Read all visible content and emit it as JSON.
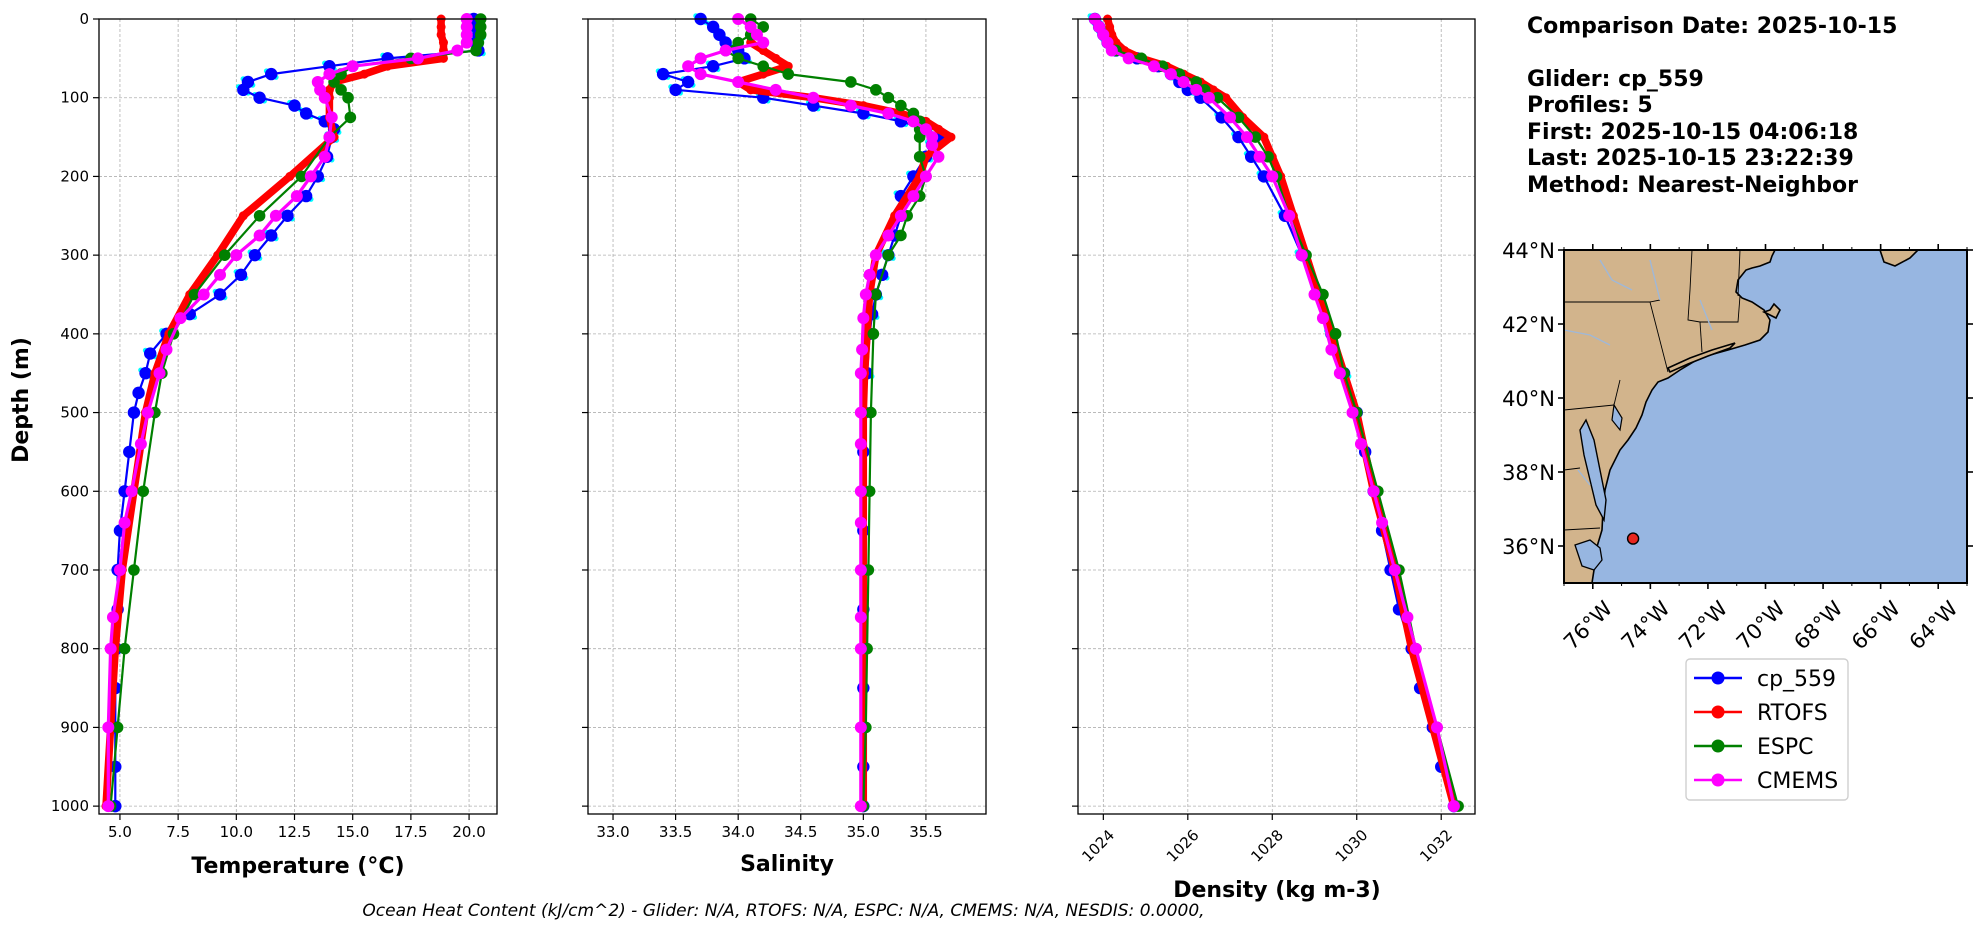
{
  "info": {
    "comparison_date": "Comparison Date: 2025-10-15",
    "glider": "Glider: cp_559",
    "profiles": "Profiles: 5",
    "first": "First: 2025-10-15 04:06:18",
    "last": "Last: 2025-10-15 23:22:39",
    "method": "Method: Nearest-Neighbor"
  },
  "footer": "Ocean Heat Content (kJ/cm^2) - Glider: N/A,  RTOFS: N/A,  ESPC: N/A,  CMEMS: N/A,  NESDIS: 0.0000,",
  "colors": {
    "glider": "#0000ff",
    "glider_raw": "#00ffff",
    "rtofs": "#ff0000",
    "espc": "#008000",
    "cmems": "#ff00ff",
    "land": "#d2b48c",
    "ocean": "#97b6e1"
  },
  "legend": [
    {
      "label": "cp_559",
      "color": "#0000ff"
    },
    {
      "label": "RTOFS",
      "color": "#ff0000"
    },
    {
      "label": "ESPC",
      "color": "#008000"
    },
    {
      "label": "CMEMS",
      "color": "#ff00ff"
    }
  ],
  "chart_data": [
    {
      "type": "line",
      "name": "temperature",
      "xlabel": "Temperature (°C)",
      "ylabel": "Depth (m)",
      "xlim": [
        4.1,
        21.2
      ],
      "ylim": [
        1010,
        0
      ],
      "xticks": [
        5.0,
        7.5,
        10.0,
        12.5,
        15.0,
        17.5,
        20.0
      ],
      "xtick_labels": [
        "5.0",
        "7.5",
        "10.0",
        "12.5",
        "15.0",
        "17.5",
        "20.0"
      ],
      "yticks": [
        0,
        100,
        200,
        300,
        400,
        500,
        600,
        700,
        800,
        900,
        1000
      ],
      "grid": true,
      "series": [
        {
          "name": "cp_559",
          "color": "#0000ff",
          "depth": [
            0,
            10,
            20,
            30,
            40,
            50,
            60,
            70,
            80,
            90,
            100,
            110,
            120,
            130,
            140,
            150,
            175,
            200,
            225,
            250,
            275,
            300,
            325,
            350,
            375,
            400,
            425,
            450,
            475,
            500,
            550,
            600,
            650,
            700,
            750,
            800,
            850,
            900,
            950,
            1000
          ],
          "values": [
            20.2,
            20.3,
            20.4,
            20.3,
            20.4,
            16.5,
            14.0,
            11.5,
            10.5,
            10.3,
            11.0,
            12.5,
            13.0,
            13.8,
            14.2,
            14.1,
            13.9,
            13.5,
            13.0,
            12.2,
            11.5,
            10.8,
            10.2,
            9.3,
            8.0,
            7.0,
            6.3,
            6.1,
            5.8,
            5.6,
            5.4,
            5.2,
            5.0,
            4.9,
            4.9,
            4.85,
            4.8,
            4.8,
            4.8,
            4.8
          ]
        },
        {
          "name": "RTOFS",
          "color": "#ff0000",
          "depth": [
            0,
            10,
            20,
            30,
            40,
            50,
            60,
            70,
            80,
            90,
            100,
            125,
            150,
            200,
            250,
            300,
            350,
            400,
            450,
            500,
            600,
            700,
            800,
            900,
            1000
          ],
          "values": [
            18.8,
            18.8,
            18.8,
            18.9,
            18.9,
            18.9,
            16.5,
            15.5,
            14.2,
            14.0,
            14.0,
            14.0,
            14.2,
            12.3,
            10.3,
            9.2,
            8.0,
            7.1,
            6.5,
            6.1,
            5.6,
            5.1,
            4.8,
            4.6,
            4.4
          ]
        },
        {
          "name": "ESPC",
          "color": "#008000",
          "depth": [
            0,
            10,
            20,
            30,
            40,
            50,
            60,
            70,
            80,
            90,
            100,
            125,
            150,
            200,
            250,
            300,
            350,
            400,
            450,
            500,
            600,
            700,
            800,
            900,
            1000
          ],
          "values": [
            20.5,
            20.5,
            20.5,
            20.4,
            20.3,
            17.5,
            15.0,
            14.5,
            14.2,
            14.5,
            14.8,
            14.9,
            14.0,
            12.8,
            11.0,
            9.5,
            8.2,
            7.3,
            6.8,
            6.5,
            6.0,
            5.6,
            5.2,
            4.9,
            4.6
          ]
        },
        {
          "name": "CMEMS",
          "color": "#ff00ff",
          "depth": [
            0,
            10,
            20,
            30,
            40,
            50,
            60,
            70,
            80,
            90,
            100,
            125,
            150,
            175,
            200,
            225,
            250,
            275,
            300,
            325,
            350,
            380,
            420,
            450,
            500,
            540,
            600,
            640,
            700,
            760,
            800,
            900,
            1000
          ],
          "values": [
            19.9,
            19.9,
            19.9,
            19.9,
            19.5,
            17.8,
            15.0,
            14.0,
            13.5,
            13.6,
            13.8,
            14.1,
            14.0,
            13.8,
            13.2,
            12.6,
            11.7,
            11.0,
            10.0,
            9.3,
            8.6,
            7.6,
            7.0,
            6.7,
            6.2,
            5.9,
            5.5,
            5.2,
            5.0,
            4.7,
            4.6,
            4.5,
            4.5
          ]
        }
      ]
    },
    {
      "type": "line",
      "name": "salinity",
      "xlabel": "Salinity",
      "ylabel": "",
      "xlim": [
        32.8,
        35.98
      ],
      "ylim": [
        1010,
        0
      ],
      "xticks": [
        33.0,
        33.5,
        34.0,
        34.5,
        35.0,
        35.5
      ],
      "xtick_labels": [
        "33.0",
        "33.5",
        "34.0",
        "34.5",
        "35.0",
        "35.5"
      ],
      "grid": true,
      "series": [
        {
          "name": "cp_559",
          "color": "#0000ff",
          "depth": [
            0,
            10,
            20,
            30,
            40,
            50,
            60,
            70,
            80,
            90,
            100,
            110,
            120,
            130,
            140,
            150,
            160,
            175,
            200,
            225,
            250,
            275,
            300,
            325,
            350,
            375,
            400,
            450,
            500,
            550,
            600,
            650,
            700,
            750,
            800,
            850,
            900,
            950,
            1000
          ],
          "values": [
            33.7,
            33.8,
            33.85,
            33.9,
            34.0,
            34.05,
            33.8,
            33.4,
            33.6,
            33.5,
            34.2,
            34.6,
            35.0,
            35.3,
            35.5,
            35.6,
            35.55,
            35.5,
            35.4,
            35.3,
            35.3,
            35.25,
            35.2,
            35.15,
            35.1,
            35.07,
            35.05,
            35.03,
            35.01,
            35.0,
            35.0,
            35.0,
            35.0,
            35.0,
            35.0,
            35.0,
            35.0,
            35.0,
            35.0
          ]
        },
        {
          "name": "RTOFS",
          "color": "#ff0000",
          "depth": [
            0,
            10,
            20,
            30,
            40,
            50,
            60,
            70,
            80,
            90,
            100,
            110,
            120,
            130,
            140,
            150,
            175,
            200,
            250,
            300,
            350,
            400,
            450,
            500,
            600,
            700,
            800,
            900,
            1000
          ],
          "values": [
            34.1,
            34.1,
            34.1,
            34.1,
            34.2,
            34.3,
            34.4,
            34.2,
            34.0,
            34.1,
            34.6,
            35.0,
            35.3,
            35.5,
            35.6,
            35.7,
            35.5,
            35.45,
            35.25,
            35.1,
            35.05,
            35.03,
            35.01,
            35.0,
            35.0,
            35.0,
            35.0,
            35.0,
            35.0
          ]
        },
        {
          "name": "ESPC",
          "color": "#008000",
          "depth": [
            0,
            10,
            20,
            30,
            40,
            50,
            60,
            70,
            80,
            90,
            100,
            110,
            120,
            130,
            140,
            150,
            175,
            200,
            225,
            250,
            275,
            300,
            350,
            400,
            500,
            600,
            700,
            800,
            900,
            1000
          ],
          "values": [
            34.1,
            34.2,
            34.1,
            34.0,
            33.9,
            34.0,
            34.2,
            34.4,
            34.9,
            35.1,
            35.2,
            35.3,
            35.4,
            35.45,
            35.45,
            35.45,
            35.45,
            35.5,
            35.45,
            35.35,
            35.3,
            35.2,
            35.1,
            35.08,
            35.06,
            35.05,
            35.04,
            35.03,
            35.02,
            35.0
          ]
        },
        {
          "name": "CMEMS",
          "color": "#ff00ff",
          "depth": [
            0,
            10,
            20,
            30,
            40,
            50,
            60,
            70,
            80,
            90,
            100,
            110,
            120,
            130,
            140,
            150,
            160,
            175,
            200,
            225,
            250,
            275,
            300,
            325,
            350,
            380,
            420,
            450,
            500,
            540,
            600,
            640,
            700,
            760,
            800,
            900,
            1000
          ],
          "values": [
            34.0,
            34.1,
            34.15,
            34.2,
            33.9,
            33.7,
            33.6,
            33.7,
            34.0,
            34.3,
            34.6,
            34.9,
            35.2,
            35.4,
            35.5,
            35.55,
            35.55,
            35.6,
            35.5,
            35.4,
            35.3,
            35.2,
            35.1,
            35.05,
            35.02,
            35.0,
            34.99,
            34.98,
            34.98,
            34.98,
            34.98,
            34.98,
            34.98,
            34.98,
            34.98,
            34.98,
            34.98
          ]
        }
      ]
    },
    {
      "type": "line",
      "name": "density",
      "xlabel": "Density (kg m-3)",
      "ylabel": "",
      "xlim": [
        1023.4,
        1032.8
      ],
      "ylim": [
        1010,
        0
      ],
      "xticks": [
        1024,
        1026,
        1028,
        1030,
        1032
      ],
      "xtick_labels": [
        "1024",
        "1026",
        "1028",
        "1030",
        "1032"
      ],
      "grid": true,
      "series": [
        {
          "name": "cp_559",
          "color": "#0000ff",
          "depth": [
            0,
            10,
            20,
            30,
            40,
            50,
            60,
            70,
            80,
            90,
            100,
            125,
            150,
            175,
            200,
            250,
            300,
            350,
            400,
            450,
            500,
            550,
            600,
            650,
            700,
            750,
            800,
            850,
            900,
            950,
            1000
          ],
          "values": [
            1023.8,
            1023.9,
            1024.0,
            1024.1,
            1024.3,
            1024.8,
            1025.3,
            1025.6,
            1025.8,
            1026.0,
            1026.3,
            1026.8,
            1027.2,
            1027.5,
            1027.8,
            1028.3,
            1028.7,
            1029.1,
            1029.4,
            1029.7,
            1030.0,
            1030.2,
            1030.4,
            1030.6,
            1030.8,
            1031.0,
            1031.3,
            1031.5,
            1031.8,
            1032.0,
            1032.3
          ]
        },
        {
          "name": "RTOFS",
          "color": "#ff0000",
          "depth": [
            0,
            10,
            20,
            30,
            40,
            50,
            60,
            70,
            80,
            90,
            100,
            125,
            150,
            175,
            200,
            250,
            300,
            350,
            400,
            450,
            500,
            600,
            700,
            800,
            900,
            1000
          ],
          "values": [
            1024.1,
            1024.15,
            1024.2,
            1024.3,
            1024.5,
            1024.9,
            1025.5,
            1025.9,
            1026.3,
            1026.6,
            1026.9,
            1027.3,
            1027.8,
            1028.0,
            1028.2,
            1028.5,
            1028.8,
            1029.1,
            1029.4,
            1029.7,
            1030.0,
            1030.4,
            1030.9,
            1031.3,
            1031.8,
            1032.3
          ]
        },
        {
          "name": "ESPC",
          "color": "#008000",
          "depth": [
            0,
            10,
            20,
            30,
            40,
            50,
            60,
            70,
            80,
            90,
            100,
            125,
            150,
            175,
            200,
            250,
            300,
            350,
            400,
            450,
            500,
            600,
            700,
            800,
            900,
            1000
          ],
          "values": [
            1023.8,
            1023.9,
            1024.0,
            1024.1,
            1024.3,
            1024.9,
            1025.4,
            1025.8,
            1026.2,
            1026.4,
            1026.7,
            1027.2,
            1027.6,
            1027.9,
            1028.1,
            1028.4,
            1028.8,
            1029.2,
            1029.5,
            1029.7,
            1030.0,
            1030.5,
            1031.0,
            1031.4,
            1031.9,
            1032.4
          ]
        },
        {
          "name": "CMEMS",
          "color": "#ff00ff",
          "depth": [
            0,
            10,
            20,
            30,
            40,
            50,
            60,
            70,
            80,
            90,
            100,
            125,
            150,
            175,
            200,
            250,
            300,
            350,
            380,
            420,
            450,
            500,
            540,
            600,
            640,
            700,
            760,
            800,
            900,
            1000
          ],
          "values": [
            1023.8,
            1023.9,
            1024.0,
            1024.1,
            1024.2,
            1024.6,
            1025.2,
            1025.6,
            1025.9,
            1026.2,
            1026.5,
            1027.0,
            1027.4,
            1027.7,
            1028.0,
            1028.4,
            1028.7,
            1029.0,
            1029.2,
            1029.4,
            1029.6,
            1029.9,
            1030.1,
            1030.4,
            1030.6,
            1030.9,
            1031.2,
            1031.4,
            1031.9,
            1032.3
          ]
        }
      ]
    },
    {
      "type": "map",
      "name": "location-map",
      "lon_range": [
        -77.0,
        -63.0
      ],
      "lat_range": [
        35.0,
        44.0
      ],
      "lon_ticks": [
        -76,
        -74,
        -72,
        -70,
        -68,
        -66,
        -64
      ],
      "lon_tick_labels": [
        "76°W",
        "74°W",
        "72°W",
        "70°W",
        "68°W",
        "66°W",
        "64°W"
      ],
      "lat_ticks": [
        36,
        38,
        40,
        42,
        44
      ],
      "lat_tick_labels": [
        "36°N",
        "38°N",
        "40°N",
        "42°N",
        "44°N"
      ],
      "glider_position": {
        "lon": -74.6,
        "lat": 36.2
      }
    }
  ]
}
